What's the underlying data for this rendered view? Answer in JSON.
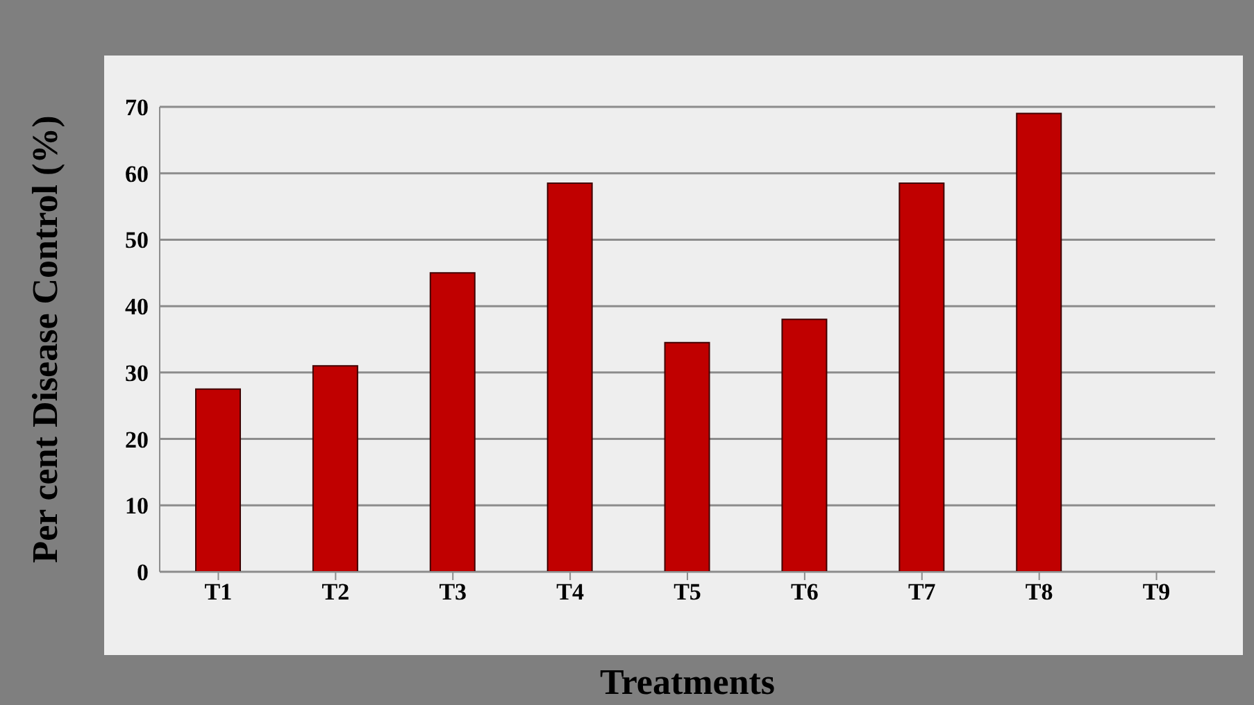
{
  "chart_data": {
    "type": "bar",
    "xlabel": "Treatments",
    "ylabel": "Per cent Disease Control (%)",
    "categories": [
      "T1",
      "T2",
      "T3",
      "T4",
      "T5",
      "T6",
      "T7",
      "T8",
      "T9"
    ],
    "values": [
      27.5,
      31,
      45,
      58.5,
      34.5,
      38,
      58.5,
      69,
      0
    ],
    "color": "#c00000",
    "ylim": [
      0,
      70
    ],
    "yticks": [
      0,
      10,
      20,
      30,
      40,
      50,
      60,
      70
    ],
    "grid": "y"
  }
}
